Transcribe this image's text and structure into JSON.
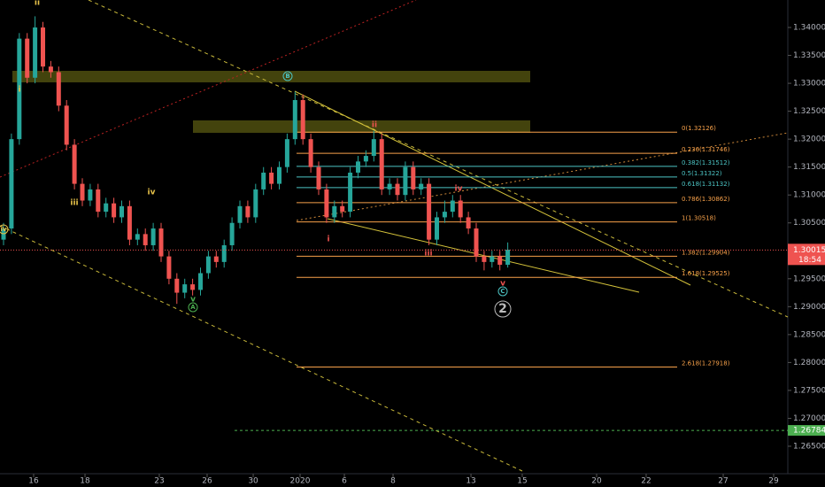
{
  "chart_data": {
    "type": "candlestick",
    "up_color": "#26a69a",
    "down_color": "#ef5350",
    "open": [
      1.302,
      1.304,
      1.32,
      1.338,
      1.331,
      1.34,
      1.333,
      1.332,
      1.326,
      1.319,
      1.312,
      1.309,
      1.311,
      1.307,
      1.3085,
      1.306,
      1.308,
      1.302,
      1.303,
      1.301,
      1.304,
      1.299,
      1.295,
      1.2925,
      1.294,
      1.293,
      1.296,
      1.299,
      1.298,
      1.301,
      1.305,
      1.308,
      1.306,
      1.311,
      1.314,
      1.312,
      1.315,
      1.32,
      1.327,
      1.32,
      1.315,
      1.311,
      1.306,
      1.308,
      1.307,
      1.314,
      1.316,
      1.317,
      1.32,
      1.311,
      1.312,
      1.31,
      1.315,
      1.311,
      1.312,
      1.302,
      1.306,
      1.307,
      1.309,
      1.306,
      1.304,
      1.299,
      1.298,
      1.299,
      1.2975
    ],
    "high": [
      1.305,
      1.321,
      1.339,
      1.339,
      1.342,
      1.341,
      1.334,
      1.333,
      1.327,
      1.32,
      1.313,
      1.312,
      1.312,
      1.3095,
      1.3095,
      1.309,
      1.309,
      1.304,
      1.304,
      1.305,
      1.305,
      1.3,
      1.296,
      1.295,
      1.295,
      1.297,
      1.3,
      1.3,
      1.302,
      1.306,
      1.309,
      1.309,
      1.312,
      1.315,
      1.315,
      1.316,
      1.321,
      1.3285,
      1.328,
      1.321,
      1.316,
      1.312,
      1.309,
      1.309,
      1.315,
      1.317,
      1.318,
      1.3215,
      1.321,
      1.313,
      1.313,
      1.316,
      1.316,
      1.313,
      1.313,
      1.307,
      1.309,
      1.31,
      1.31,
      1.307,
      1.305,
      1.3,
      1.3,
      1.3,
      1.3015
    ],
    "low": [
      1.301,
      1.303,
      1.319,
      1.33,
      1.33,
      1.332,
      1.331,
      1.325,
      1.318,
      1.311,
      1.308,
      1.308,
      1.306,
      1.306,
      1.305,
      1.305,
      1.301,
      1.301,
      1.3,
      1.3,
      1.298,
      1.294,
      1.2905,
      1.2915,
      1.292,
      1.292,
      1.295,
      1.297,
      1.297,
      1.3,
      1.304,
      1.305,
      1.305,
      1.31,
      1.311,
      1.311,
      1.314,
      1.319,
      1.319,
      1.314,
      1.31,
      1.305,
      1.305,
      1.306,
      1.306,
      1.313,
      1.315,
      1.316,
      1.31,
      1.31,
      1.309,
      1.309,
      1.31,
      1.31,
      1.301,
      1.301,
      1.305,
      1.306,
      1.305,
      1.303,
      1.298,
      1.2965,
      1.297,
      1.2965,
      1.297
    ],
    "close": [
      1.304,
      1.32,
      1.338,
      1.331,
      1.34,
      1.333,
      1.332,
      1.326,
      1.319,
      1.312,
      1.309,
      1.311,
      1.307,
      1.3085,
      1.306,
      1.308,
      1.302,
      1.303,
      1.301,
      1.304,
      1.299,
      1.295,
      1.2925,
      1.294,
      1.293,
      1.296,
      1.299,
      1.298,
      1.301,
      1.305,
      1.308,
      1.306,
      1.311,
      1.314,
      1.312,
      1.315,
      1.32,
      1.327,
      1.32,
      1.315,
      1.311,
      1.306,
      1.308,
      1.307,
      1.314,
      1.316,
      1.317,
      1.32,
      1.311,
      1.312,
      1.31,
      1.315,
      1.311,
      1.312,
      1.302,
      1.306,
      1.307,
      1.309,
      1.306,
      1.304,
      1.299,
      1.298,
      1.299,
      1.2975,
      1.3002
    ],
    "xlim": [
      -0.45,
      99.55
    ],
    "xticks": [
      {
        "value": 3.82,
        "label": "16"
      },
      {
        "value": 10.34,
        "label": "18"
      },
      {
        "value": 19.77,
        "label": "23"
      },
      {
        "value": 25.84,
        "label": "26"
      },
      {
        "value": 31.69,
        "label": "30"
      },
      {
        "value": 37.64,
        "label": "2020"
      },
      {
        "value": 43.26,
        "label": "6"
      },
      {
        "value": 49.44,
        "label": "8"
      },
      {
        "value": 59.33,
        "label": "13"
      },
      {
        "value": 65.84,
        "label": "15"
      },
      {
        "value": 75.28,
        "label": "20"
      },
      {
        "value": 81.57,
        "label": "22"
      },
      {
        "value": 91.35,
        "label": "27"
      },
      {
        "value": 97.75,
        "label": "29"
      }
    ],
    "ylim": [
      1.26008,
      1.34492
    ],
    "yticks": [
      {
        "value": 1.265,
        "label": "1.26500"
      },
      {
        "value": 1.27,
        "label": "1.27000"
      },
      {
        "value": 1.275,
        "label": "1.27500"
      },
      {
        "value": 1.28,
        "label": "1.28000"
      },
      {
        "value": 1.285,
        "label": "1.28500"
      },
      {
        "value": 1.29,
        "label": "1.29000"
      },
      {
        "value": 1.295,
        "label": "1.29500"
      },
      {
        "value": 1.3,
        "label": "1.30000"
      },
      {
        "value": 1.305,
        "label": "1.30500"
      },
      {
        "value": 1.31,
        "label": "1.31000"
      },
      {
        "value": 1.315,
        "label": "1.31500"
      },
      {
        "value": 1.32,
        "label": "1.32000"
      },
      {
        "value": 1.325,
        "label": "1.32500"
      },
      {
        "value": 1.33,
        "label": "1.33000"
      },
      {
        "value": 1.335,
        "label": "1.33500"
      },
      {
        "value": 1.34,
        "label": "1.34000"
      }
    ],
    "last_price": 1.30015,
    "countdown": "18:54",
    "alert_price": 1.26784,
    "fib_levels": [
      {
        "label": "0(1.32126)",
        "value": 1.32126,
        "color": "#f7a14a"
      },
      {
        "label": "0.236(1.31746)",
        "value": 1.31746,
        "color": "#f7a14a"
      },
      {
        "label": "0.382(1.31512)",
        "value": 1.31512,
        "color": "#4cc4c4"
      },
      {
        "label": "0.5(1.31322)",
        "value": 1.31322,
        "color": "#4cc4c4"
      },
      {
        "label": "0.618(1.31132)",
        "value": 1.31132,
        "color": "#4cc4c4"
      },
      {
        "label": "0.786(1.30862)",
        "value": 1.30862,
        "color": "#f7a14a"
      },
      {
        "label": "1(1.30518)",
        "value": 1.30518,
        "color": "#f7a14a"
      },
      {
        "label": "1.382(1.29904)",
        "value": 1.29904,
        "color": "#f7a14a"
      },
      {
        "label": "1.618(1.29525)",
        "value": 1.29525,
        "color": "#f7a14a"
      },
      {
        "label": "2.618(1.27918)",
        "value": 1.27918,
        "color": "#f7a14a"
      }
    ],
    "annotations": [
      "ii",
      "i",
      "iii",
      "iv",
      "iv",
      "A",
      "v",
      "B",
      "ii",
      "i",
      "iii",
      "iv",
      "C",
      "v",
      "2"
    ]
  }
}
